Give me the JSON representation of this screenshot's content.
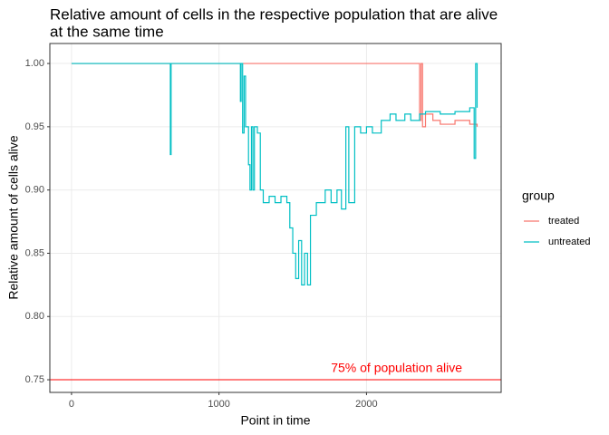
{
  "chart_data": {
    "type": "step",
    "title": [
      "Relative amount of cells in the respective population that are alive",
      "at the same time"
    ],
    "x_label": "Point in time",
    "y_label": "Relative amount of cells alive",
    "legend_title": "group",
    "xlim": [
      -147,
      2913
    ],
    "ylim": [
      0.74,
      1.0158
    ],
    "xticks": [
      0,
      1000,
      2000
    ],
    "yticks": [
      0.75,
      {
        "value": 0.8,
        "label": "0.80"
      },
      0.85,
      {
        "value": 0.9,
        "label": "0.90"
      },
      0.95,
      {
        "value": 1.0,
        "label": "1.00"
      }
    ],
    "grid": true,
    "hline": {
      "value": 0.75,
      "color": "#FF0000",
      "label": "75% of population alive"
    },
    "series": [
      {
        "name": "treated",
        "color": "#F8766D",
        "x": [
          0,
          2360,
          2370,
          2380,
          2400,
          2450,
          2500,
          2600,
          2700,
          2750
        ],
        "values": [
          1.0,
          0.955,
          1.0,
          0.95,
          0.96,
          0.955,
          0.952,
          0.955,
          0.952,
          0.95
        ]
      },
      {
        "name": "untreated",
        "color": "#00BFC4",
        "x": [
          0,
          670,
          675,
          1140,
          1145,
          1150,
          1160,
          1170,
          1180,
          1200,
          1210,
          1220,
          1230,
          1240,
          1260,
          1280,
          1300,
          1340,
          1380,
          1420,
          1460,
          1480,
          1500,
          1520,
          1540,
          1560,
          1580,
          1600,
          1620,
          1660,
          1700,
          1720,
          1760,
          1800,
          1830,
          1860,
          1880,
          1920,
          1960,
          2000,
          2040,
          2100,
          2160,
          2200,
          2260,
          2300,
          2360,
          2400,
          2500,
          2600,
          2700,
          2730,
          2740,
          2750
        ],
        "values": [
          1.0,
          0.928,
          1.0,
          1.0,
          0.97,
          1.0,
          0.945,
          0.99,
          0.95,
          0.92,
          0.9,
          0.95,
          0.9,
          0.95,
          0.945,
          0.9,
          0.89,
          0.895,
          0.89,
          0.895,
          0.89,
          0.87,
          0.85,
          0.83,
          0.86,
          0.825,
          0.85,
          0.825,
          0.88,
          0.89,
          0.89,
          0.9,
          0.89,
          0.9,
          0.885,
          0.95,
          0.89,
          0.95,
          0.945,
          0.95,
          0.945,
          0.955,
          0.96,
          0.955,
          0.96,
          0.955,
          0.96,
          0.962,
          0.96,
          0.962,
          0.965,
          0.925,
          1.0,
          0.965
        ]
      }
    ]
  }
}
